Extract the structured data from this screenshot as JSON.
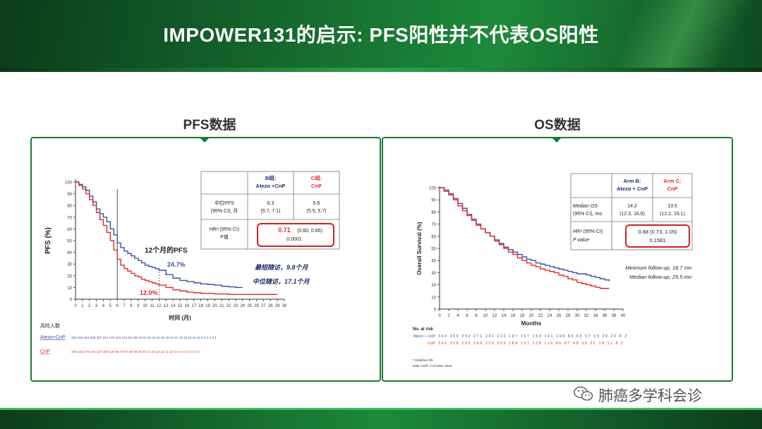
{
  "slide": {
    "title": "IMPOWER131的启示: PFS阳性并不代表OS阳性"
  },
  "watermark": {
    "text": "肺癌多学科会诊",
    "icon": "wechat-icon"
  },
  "colors": {
    "blue": "#3a4ea6",
    "red": "#e02a2a",
    "green": "#1b7a34",
    "box": "#cc2222"
  },
  "pfs": {
    "heading": "PFS数据",
    "chart_data": {
      "type": "line",
      "ylabel": "PFS (%)",
      "xlabel": "时间 (月)",
      "xlim": [
        0,
        30
      ],
      "ylim": [
        0,
        100
      ],
      "xticks": [
        0,
        1,
        2,
        3,
        4,
        5,
        6,
        7,
        8,
        9,
        10,
        11,
        12,
        13,
        14,
        15,
        16,
        17,
        18,
        19,
        20,
        21,
        22,
        23,
        24,
        25,
        26,
        27,
        28,
        29,
        30
      ],
      "yticks": [
        0,
        10,
        20,
        30,
        40,
        50,
        60,
        70,
        80,
        90,
        100
      ],
      "series": [
        {
          "name": "Atezo+CnP",
          "color": "#3a4ea6",
          "x": [
            0,
            0.5,
            1,
            1.5,
            2,
            2.5,
            3,
            3.5,
            4,
            4.5,
            5,
            5.5,
            6,
            6.5,
            7,
            7.5,
            8,
            8.5,
            9,
            9.5,
            10,
            10.5,
            11,
            11.5,
            12,
            13,
            14,
            15,
            16,
            17,
            18,
            19,
            20,
            21,
            22,
            23,
            24
          ],
          "y": [
            100,
            98,
            96,
            93,
            88,
            83,
            77,
            73,
            70,
            66,
            60,
            55,
            48,
            44,
            41,
            39,
            37,
            35,
            33,
            31,
            29,
            28,
            27,
            26,
            24.7,
            21,
            18,
            16,
            15,
            14,
            13,
            12.5,
            12,
            11,
            10.5,
            10,
            10
          ]
        },
        {
          "name": "CnP",
          "color": "#e02a2a",
          "x": [
            0,
            0.5,
            1,
            1.5,
            2,
            2.5,
            3,
            3.5,
            4,
            4.5,
            5,
            5.5,
            6,
            6.5,
            7,
            7.5,
            8,
            8.5,
            9,
            9.5,
            10,
            10.5,
            11,
            11.5,
            12,
            13,
            14,
            15,
            16,
            17,
            18,
            19,
            20,
            21,
            22,
            23,
            24,
            25,
            26,
            27,
            28,
            29
          ],
          "y": [
            100,
            97,
            94,
            90,
            85,
            80,
            74,
            68,
            63,
            57,
            50,
            42,
            34,
            29,
            26,
            24,
            22,
            20,
            19,
            17,
            16,
            15,
            14,
            13,
            12,
            10,
            8,
            7,
            6,
            5.5,
            5,
            5,
            4.5,
            4.5,
            4,
            4,
            4,
            4,
            4,
            4,
            4,
            4
          ]
        }
      ],
      "annotations": {
        "vline_month": 6,
        "landmark_title": "12个月的PFS",
        "landmark_blue": "24.7%",
        "landmark_red": "12.0%",
        "min_follow": "最短随访，9.8个月",
        "median_follow": "中位随访，17.1个月"
      },
      "risk": {
        "title": "风险人数",
        "rows": [
          {
            "label": "Atezo+CnP",
            "values": "343 318 294 268 257 212 172 151 134 111 88 76 61 51 44 42 33 32 24 21 18 18 16 12 11 5 5 4 3 2 1"
          },
          {
            "label": "CnP",
            "values": "340 322 279 244 227 183 128 95 79 57 49 40 28 26 21 19 12 12 11 10 6 6 4 4 3 3 2 2 2 1"
          }
        ]
      },
      "table": {
        "col_b": "B组:\nAtezo +CnP",
        "col_c": "C组:\nCnP",
        "row1_label": "中位PFS\n(95% CI), 月",
        "row1_b": "6.3\n(5.7, 7.1)",
        "row1_c": "5.6\n(5.5, 5.7)",
        "row2_label": "HRᵃ (95% CI)\nP值",
        "row2_hr": "0.71",
        "row2_ci": "(0.60, 0.85)",
        "row2_p": "0.0001"
      }
    }
  },
  "os": {
    "heading": "OS数据",
    "chart_data": {
      "type": "line",
      "ylabel": "Overall Survival (%)",
      "xlabel": "Months",
      "xlim": [
        0,
        40
      ],
      "ylim": [
        0,
        100
      ],
      "xticks": [
        0,
        2,
        4,
        6,
        8,
        10,
        12,
        14,
        16,
        18,
        20,
        22,
        24,
        26,
        28,
        30,
        32,
        34,
        36,
        38,
        40
      ],
      "yticks": [
        0,
        10,
        20,
        30,
        40,
        50,
        60,
        70,
        80,
        90,
        100
      ],
      "series": [
        {
          "name": "Atezo + CnP",
          "color": "#3a4ea6",
          "x": [
            0,
            1,
            2,
            3,
            4,
            5,
            6,
            7,
            8,
            9,
            10,
            11,
            12,
            13,
            14,
            15,
            16,
            17,
            18,
            19,
            20,
            21,
            22,
            23,
            24,
            25,
            26,
            27,
            28,
            29,
            30,
            31,
            32,
            33,
            34,
            35,
            36,
            37
          ],
          "y": [
            100,
            98,
            95,
            91,
            87,
            83,
            78,
            74,
            70,
            66,
            63,
            60,
            57,
            54,
            51,
            49,
            47,
            45,
            43,
            41,
            40,
            38,
            37,
            36,
            35,
            34,
            33,
            32,
            31,
            30,
            29,
            29,
            28,
            27,
            26,
            25,
            24,
            23
          ]
        },
        {
          "name": "CnP",
          "color": "#e02a2a",
          "x": [
            0,
            1,
            2,
            3,
            4,
            5,
            6,
            7,
            8,
            9,
            10,
            11,
            12,
            13,
            14,
            15,
            16,
            17,
            18,
            19,
            20,
            21,
            22,
            23,
            24,
            25,
            26,
            27,
            28,
            29,
            30,
            31,
            32,
            33,
            34,
            35,
            36,
            37
          ],
          "y": [
            100,
            97,
            94,
            90,
            85,
            81,
            77,
            73,
            69,
            66,
            63,
            60,
            56,
            53,
            50,
            47,
            45,
            42,
            40,
            38,
            36,
            35,
            33,
            32,
            31,
            30,
            28,
            27,
            25,
            24,
            22,
            21,
            20,
            19,
            18,
            17,
            17,
            17
          ]
        }
      ],
      "table": {
        "col_b": "Arm B:\nAtezo + CnP",
        "col_c": "Arm C:\nCnP",
        "row1_label": "Median OS\n(95% CI), mo",
        "row1_b": "14.2\n(12.3, 16.8)",
        "row1_c": "13.5\n(12.2, 15.1)",
        "row2_label1": "HRᵃ (95% CI)",
        "row2_label2": "P value",
        "row2_hr": "0.88 (0.73, 1.05)",
        "row2_p": "0.1581"
      },
      "annotations": {
        "min_follow": "Minimum follow-up, 18.7 mo",
        "median_follow": "Median follow-up, 25.5 mo"
      },
      "risk": {
        "title": "No. at risk",
        "rows": [
          {
            "label": "Atezo + CnP",
            "values": "343 309 292 271 242 210 187 167 153 141 108 86 68 57 39 29 20 8 2"
          },
          {
            "label": "CnP",
            "values": "340 316 293 266 229 209 184 157 138 116 85 67 49 38 22 18 11 8 2"
          }
        ]
      },
      "footnotes": [
        "ᵃ Stratified HR.",
        "Data cutoff: 3 October 2018."
      ]
    }
  }
}
